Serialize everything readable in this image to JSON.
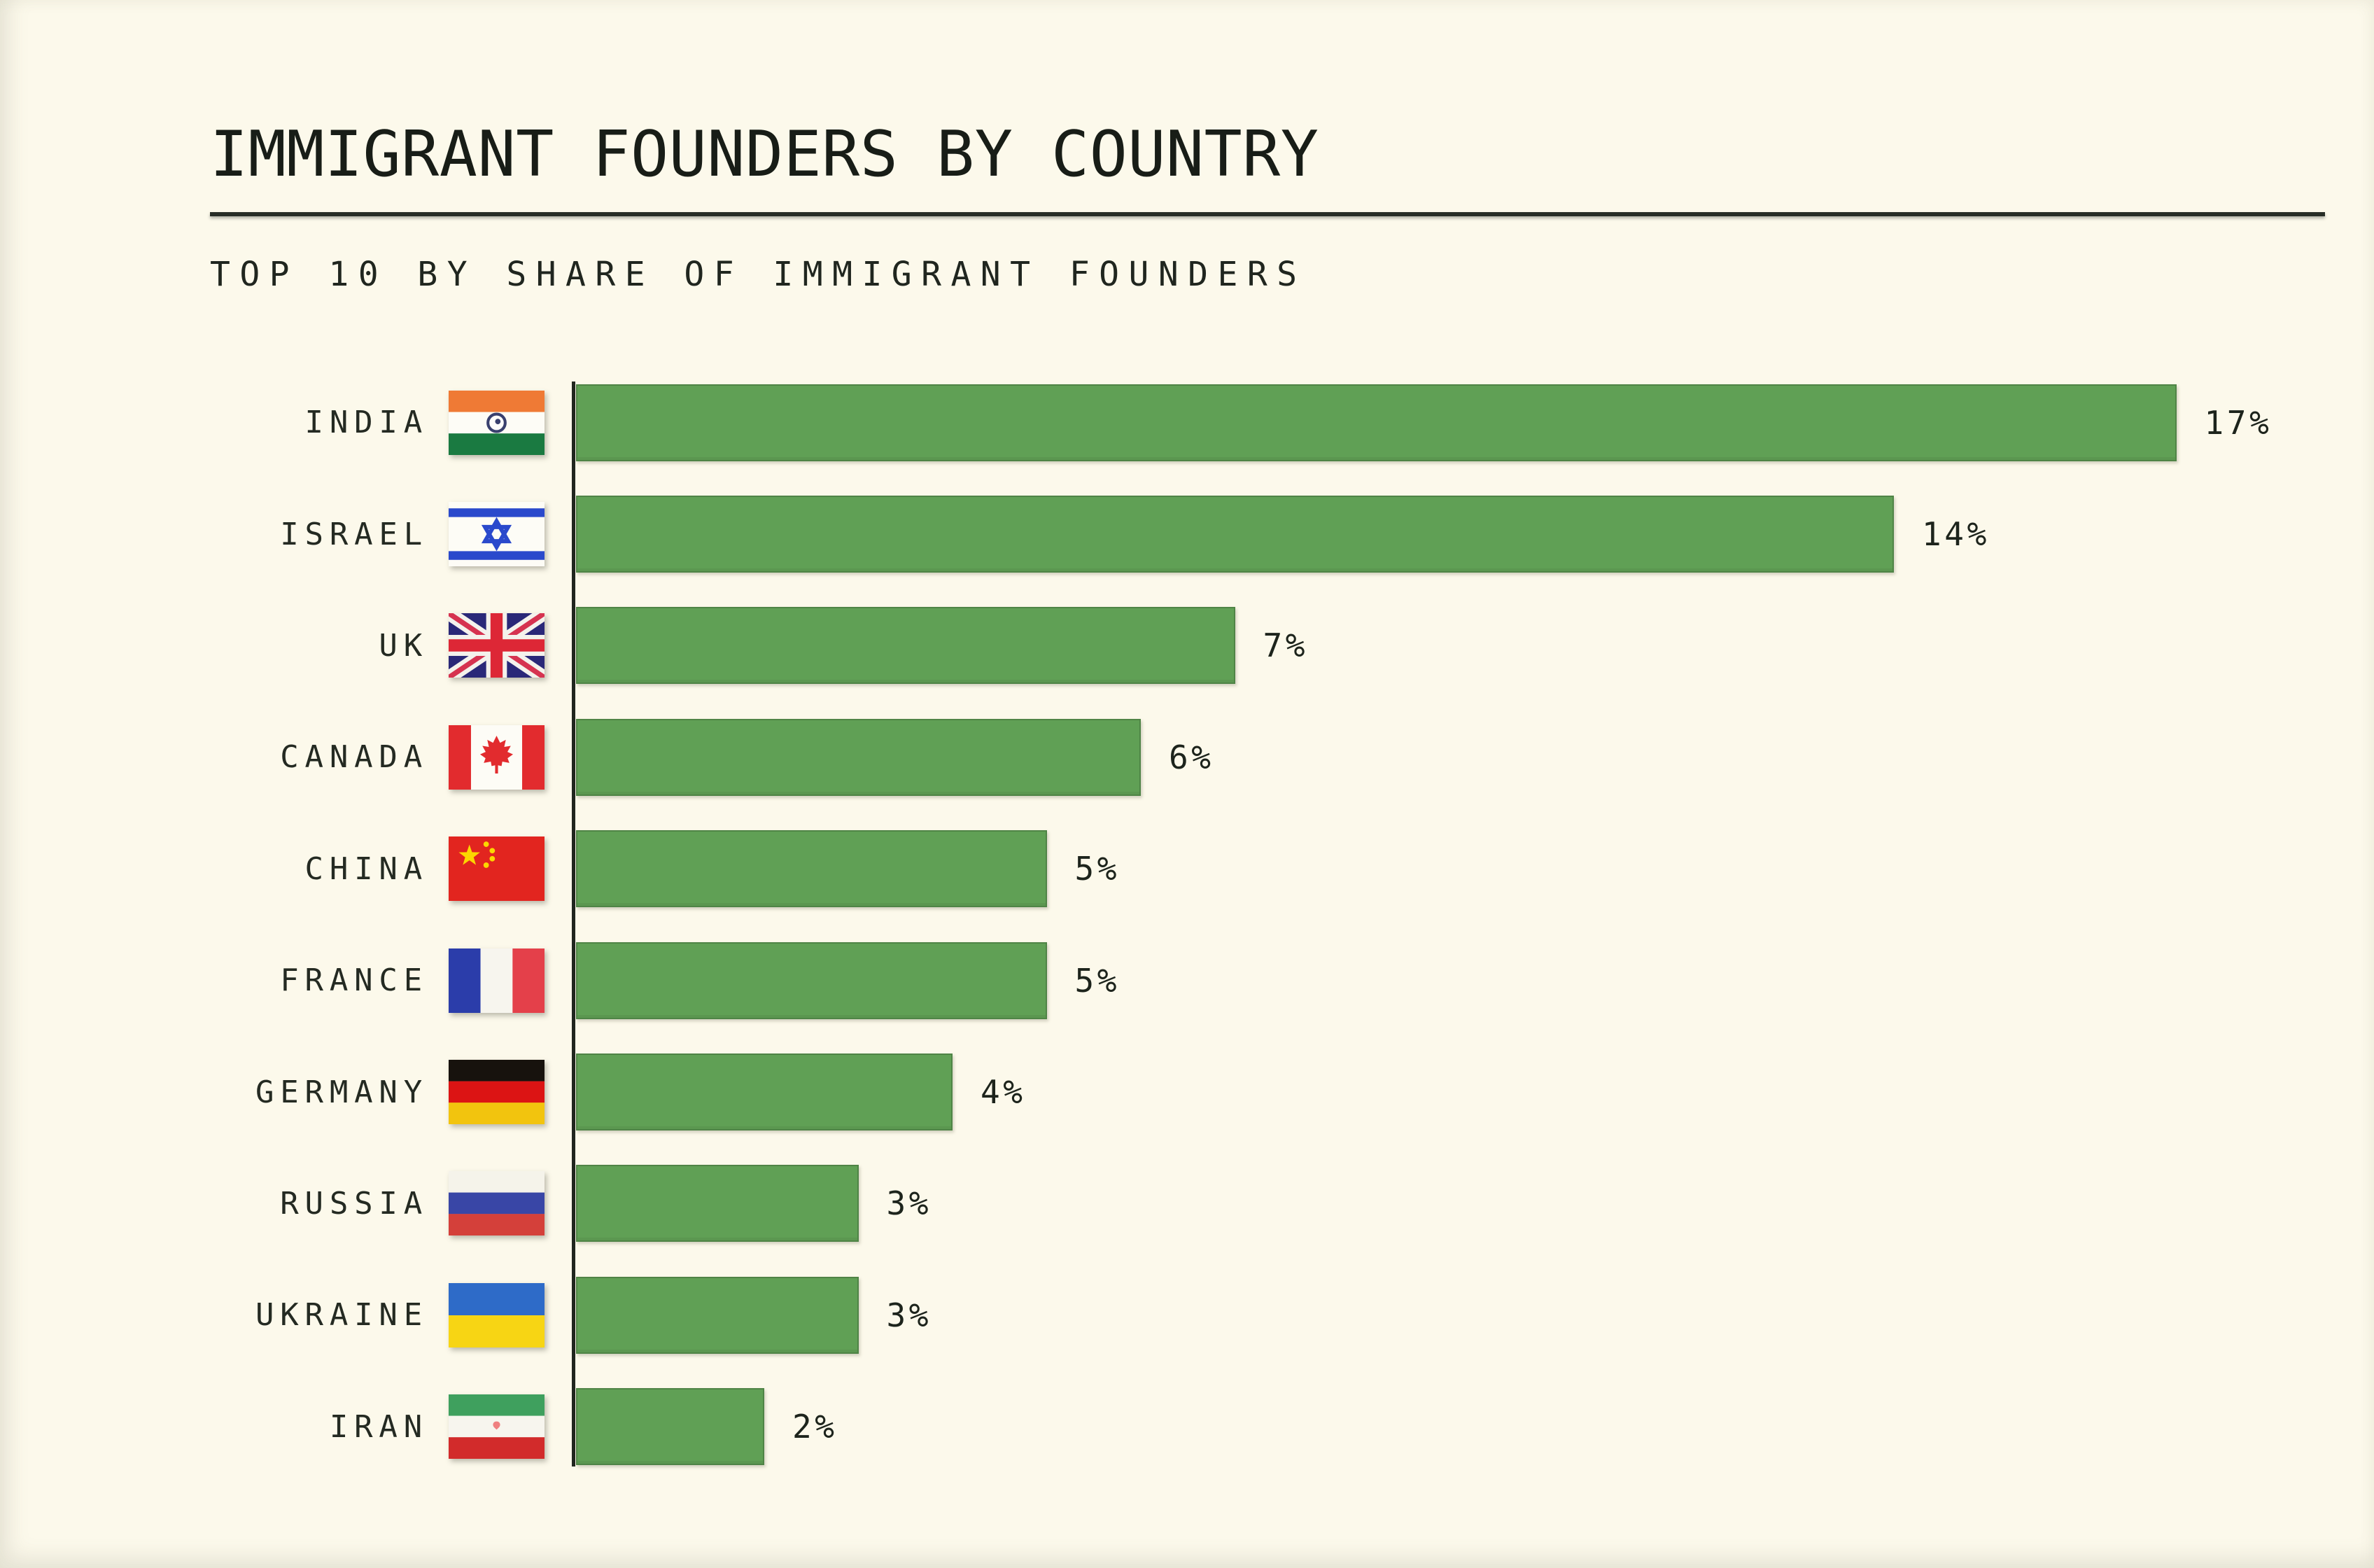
{
  "title": "IMMIGRANT FOUNDERS BY COUNTRY",
  "subtitle": "TOP 10 BY SHARE OF IMMIGRANT FOUNDERS",
  "colors": {
    "background": "#fcf9eb",
    "bar_green": "#60a055",
    "axis": "#20261f",
    "text": "#20261f"
  },
  "chart_data": {
    "type": "bar",
    "orientation": "horizontal",
    "title": "IMMIGRANT FOUNDERS BY COUNTRY",
    "subtitle": "TOP 10 BY SHARE OF IMMIGRANT FOUNDERS",
    "unit": "%",
    "xlim": [
      0,
      18
    ],
    "grid": false,
    "legend": false,
    "categories": [
      "INDIA",
      "ISRAEL",
      "UK",
      "CANADA",
      "CHINA",
      "FRANCE",
      "GERMANY",
      "RUSSIA",
      "UKRAINE",
      "IRAN"
    ],
    "values": [
      17,
      14,
      7,
      6,
      5,
      5,
      4,
      3,
      3,
      2
    ],
    "value_labels": [
      "17%",
      "14%",
      "7%",
      "6%",
      "5%",
      "5%",
      "4%",
      "3%",
      "3%",
      "2%"
    ],
    "flags": [
      "india",
      "israel",
      "uk",
      "canada",
      "china",
      "france",
      "germany",
      "russia",
      "ukraine",
      "iran"
    ]
  }
}
